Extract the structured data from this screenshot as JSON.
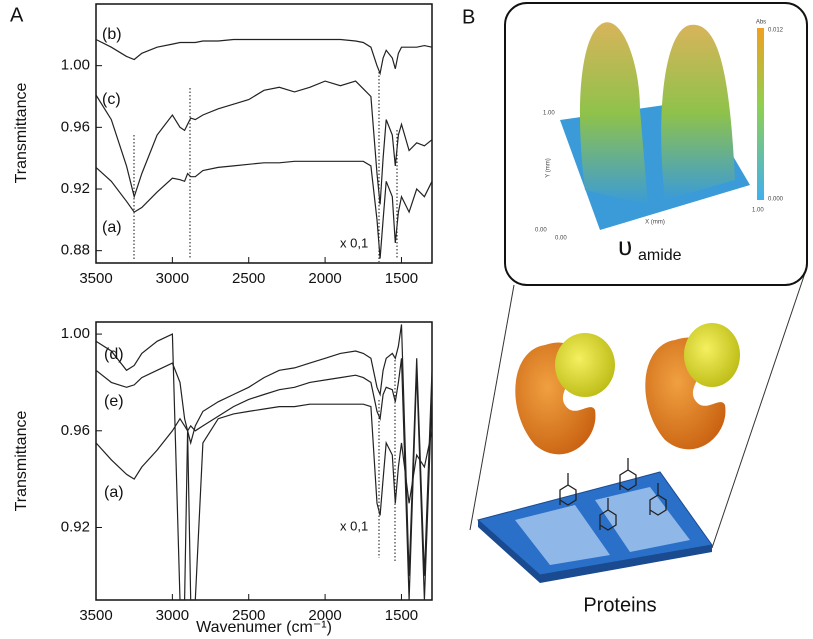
{
  "chart_data": [
    {
      "type": "line",
      "ylabel": "Transmittance",
      "annotation": "x 0,1",
      "x": [
        3500,
        3400,
        3300,
        3250,
        3200,
        3100,
        3000,
        2950,
        2920,
        2900,
        2880,
        2850,
        2800,
        2700,
        2600,
        2500,
        2400,
        2300,
        2200,
        2100,
        2000,
        1900,
        1800,
        1750,
        1700,
        1660,
        1640,
        1620,
        1600,
        1560,
        1540,
        1520,
        1500,
        1450,
        1400,
        1350,
        1300
      ],
      "xlim": [
        3500,
        1300
      ],
      "xticks": [
        3500,
        3000,
        2500,
        2000,
        1500
      ],
      "ylim": [
        0.872,
        1.04
      ],
      "yticks": [
        0.88,
        0.92,
        0.96,
        {
          "value": 1,
          "label": "1.00"
        }
      ],
      "grid": false,
      "series": [
        {
          "name": "(b)",
          "color": "#222222",
          "values": [
            1.017,
            1.012,
            1.006,
            1.004,
            1.008,
            1.012,
            1.014,
            1.015,
            1.015,
            1.015,
            1.015,
            1.015,
            1.016,
            1.016,
            1.017,
            1.017,
            1.017,
            1.017,
            1.017,
            1.017,
            1.017,
            1.017,
            1.016,
            1.015,
            1.012,
            1.0,
            0.995,
            1.005,
            1.01,
            1.005,
            0.998,
            1.008,
            1.012,
            1.012,
            1.012,
            1.013,
            1.012
          ]
        },
        {
          "name": "(c)",
          "color": "#222222",
          "values": [
            0.981,
            0.965,
            0.935,
            0.915,
            0.93,
            0.955,
            0.968,
            0.96,
            0.958,
            0.962,
            0.966,
            0.965,
            0.968,
            0.972,
            0.975,
            0.978,
            0.984,
            0.986,
            0.983,
            0.986,
            0.99,
            0.987,
            0.99,
            0.985,
            0.98,
            0.93,
            0.91,
            0.94,
            0.965,
            0.955,
            0.935,
            0.955,
            0.962,
            0.945,
            0.95,
            0.948,
            0.952
          ]
        },
        {
          "name": "(a)",
          "color": "#222222",
          "values": [
            0.934,
            0.925,
            0.912,
            0.905,
            0.908,
            0.918,
            0.927,
            0.926,
            0.925,
            0.93,
            0.928,
            0.928,
            0.932,
            0.934,
            0.935,
            0.936,
            0.937,
            0.937,
            0.938,
            0.938,
            0.938,
            0.938,
            0.938,
            0.938,
            0.935,
            0.9,
            0.875,
            0.9,
            0.925,
            0.915,
            0.885,
            0.905,
            0.915,
            0.905,
            0.92,
            0.915,
            0.925
          ]
        }
      ]
    },
    {
      "type": "line",
      "ylabel": "Transmittance",
      "xlabel": "Wavenumer (cm⁻¹)",
      "annotation": "x 0,1",
      "x": [
        3500,
        3400,
        3300,
        3250,
        3200,
        3100,
        3000,
        2950,
        2920,
        2900,
        2880,
        2850,
        2800,
        2700,
        2600,
        2500,
        2400,
        2300,
        2200,
        2100,
        2000,
        1900,
        1800,
        1750,
        1700,
        1660,
        1640,
        1620,
        1600,
        1560,
        1540,
        1520,
        1500,
        1450,
        1400,
        1350,
        1300
      ],
      "xlim": [
        3500,
        1300
      ],
      "xticks": [
        3500,
        3000,
        2500,
        2000,
        1500
      ],
      "ylim": [
        0.89,
        1.005
      ],
      "yticks": [
        0.92,
        0.96,
        {
          "value": 1,
          "label": "1.00"
        }
      ],
      "grid": false,
      "series": [
        {
          "name": "(d)",
          "color": "#222222",
          "values": [
            0.997,
            0.993,
            0.985,
            0.987,
            0.992,
            0.997,
            1.0,
            0.89,
            0.89,
            0.96,
            0.955,
            0.962,
            0.968,
            0.972,
            0.975,
            0.978,
            0.982,
            0.985,
            0.986,
            0.988,
            0.99,
            0.992,
            0.993,
            0.992,
            0.99,
            0.978,
            0.975,
            0.985,
            0.99,
            0.992,
            0.99,
            0.995,
            1.004,
            0.9,
            0.99,
            0.9,
            0.985
          ]
        },
        {
          "name": "(e)",
          "color": "#222222",
          "values": [
            0.985,
            0.98,
            0.978,
            0.979,
            0.982,
            0.985,
            0.988,
            0.98,
            0.965,
            0.96,
            0.962,
            0.96,
            0.962,
            0.966,
            0.97,
            0.973,
            0.975,
            0.977,
            0.978,
            0.98,
            0.981,
            0.982,
            0.983,
            0.982,
            0.98,
            0.968,
            0.965,
            0.975,
            0.978,
            0.977,
            0.972,
            0.98,
            0.99,
            0.89,
            0.985,
            0.89,
            0.975
          ]
        },
        {
          "name": "(a)",
          "color": "#222222",
          "values": [
            0.955,
            0.948,
            0.942,
            0.94,
            0.945,
            0.952,
            0.96,
            0.965,
            0.962,
            0.96,
            0.89,
            0.89,
            0.955,
            0.965,
            0.967,
            0.968,
            0.969,
            0.97,
            0.97,
            0.971,
            0.971,
            0.971,
            0.971,
            0.971,
            0.97,
            0.93,
            0.925,
            0.94,
            0.955,
            0.95,
            0.93,
            0.945,
            0.955,
            0.93,
            0.95,
            0.945,
            0.96
          ]
        }
      ]
    }
  ],
  "figure": {
    "panel_a": "A",
    "panel_b": "B",
    "inset": {
      "colorbar_title": "Abs",
      "colorbar_max": "0.012",
      "colorbar_min": "0.000",
      "y_axis": "Y (mm)",
      "x_axis": "X (mm)",
      "y_max": "1.00",
      "y_min": "0.00",
      "x_min": "0.00",
      "x_max": "1.00",
      "symbol": "υ",
      "subscript": "amide"
    },
    "caption": "Proteins"
  }
}
